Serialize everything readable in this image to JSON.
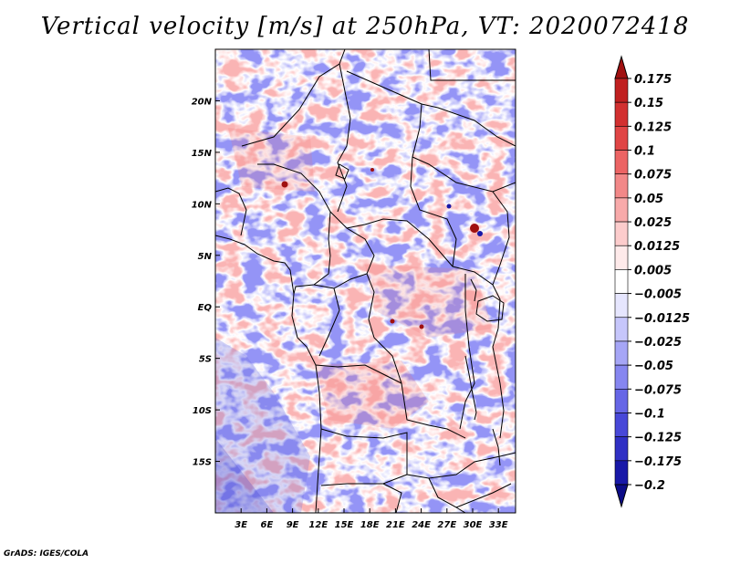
{
  "title": "Vertical velocity [m/s] at 250hPa, VT: 2020072418",
  "footer": "GrADS: IGES/COLA",
  "map": {
    "lon_range": [
      0,
      35
    ],
    "lat_range": [
      -20,
      25
    ],
    "lon_ticks": [
      "3E",
      "6E",
      "9E",
      "12E",
      "15E",
      "18E",
      "21E",
      "24E",
      "27E",
      "30E",
      "33E"
    ],
    "lat_ticks": [
      "20N",
      "15N",
      "10N",
      "5N",
      "EQ",
      "5S",
      "10S",
      "15S"
    ],
    "positive_color": "#e0403a",
    "negative_color": "#3a3ae0"
  },
  "colorbar": {
    "levels": [
      "0.175",
      "0.15",
      "0.125",
      "0.1",
      "0.075",
      "0.05",
      "0.025",
      "0.0125",
      "0.005",
      "-0.005",
      "-0.0125",
      "-0.025",
      "-0.05",
      "-0.075",
      "-0.1",
      "-0.125",
      "-0.175",
      "-0.2"
    ],
    "colors": [
      "#a01010",
      "#c02020",
      "#d23030",
      "#e04545",
      "#ec6464",
      "#f28888",
      "#f8aaaa",
      "#fccccc",
      "#feeaea",
      "#ffffff",
      "#e6e6fe",
      "#c6c6fb",
      "#a6a6f6",
      "#8686f0",
      "#6666e6",
      "#4848d8",
      "#3030c4",
      "#1818a8",
      "#0c0c88"
    ]
  }
}
